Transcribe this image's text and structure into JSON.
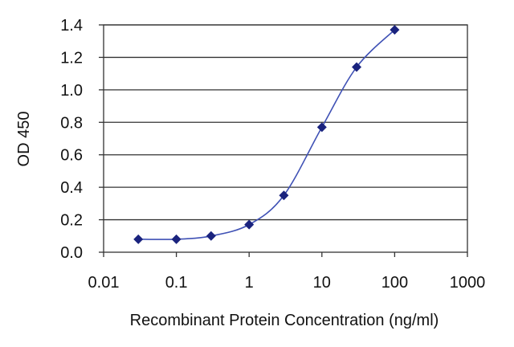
{
  "chart_data": {
    "type": "line",
    "title": "",
    "xlabel": "Recombinant Protein Concentration (ng/ml)",
    "ylabel": "OD 450",
    "x_scale": "log",
    "xlim": [
      0.01,
      1000
    ],
    "ylim": [
      0.0,
      1.4
    ],
    "x_tick_labels": [
      "0.01",
      "0.1",
      "1",
      "10",
      "100",
      "1000"
    ],
    "x_ticks": [
      0.01,
      0.1,
      1,
      10,
      100,
      1000
    ],
    "y_tick_labels": [
      "0.0",
      "0.2",
      "0.4",
      "0.6",
      "0.8",
      "1.0",
      "1.2",
      "1.4"
    ],
    "y_ticks": [
      0.0,
      0.2,
      0.4,
      0.6,
      0.8,
      1.0,
      1.2,
      1.4
    ],
    "grid": "horizontal",
    "legend": "none",
    "series": [
      {
        "x": [
          0.03,
          0.1,
          0.3,
          1,
          3,
          10,
          30,
          100
        ],
        "y": [
          0.08,
          0.08,
          0.1,
          0.17,
          0.35,
          0.77,
          1.14,
          1.37
        ]
      }
    ],
    "colors": {
      "series": "#1a237e",
      "line": "#3f51b5",
      "grid": "#333333",
      "axis": "#333333"
    }
  }
}
